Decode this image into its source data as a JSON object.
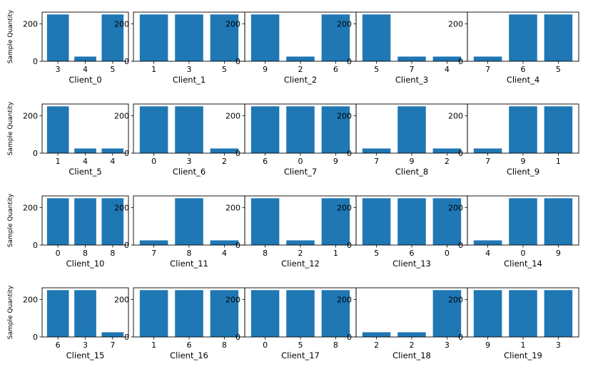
{
  "figure": {
    "bar_color": "#1f77b4",
    "axes_color": "#000000",
    "background": "#ffffff"
  },
  "chart_data": [
    {
      "type": "bar",
      "xlabel": "Client_0",
      "ylabel": "Sample Quantity",
      "categories": [
        "3",
        "4",
        "5"
      ],
      "values": [
        250,
        25,
        250
      ],
      "ylim": [
        0,
        262.5
      ],
      "yticks": [
        0,
        200
      ]
    },
    {
      "type": "bar",
      "xlabel": "Client_1",
      "ylabel": "",
      "categories": [
        "1",
        "3",
        "5"
      ],
      "values": [
        250,
        250,
        250
      ],
      "ylim": [
        0,
        262.5
      ],
      "yticks": [
        0,
        200
      ]
    },
    {
      "type": "bar",
      "xlabel": "Client_2",
      "ylabel": "",
      "categories": [
        "9",
        "2",
        "6"
      ],
      "values": [
        250,
        25,
        250
      ],
      "ylim": [
        0,
        262.5
      ],
      "yticks": [
        0,
        200
      ]
    },
    {
      "type": "bar",
      "xlabel": "Client_3",
      "ylabel": "",
      "categories": [
        "5",
        "7",
        "4"
      ],
      "values": [
        250,
        25,
        25
      ],
      "ylim": [
        0,
        262.5
      ],
      "yticks": [
        0,
        200
      ]
    },
    {
      "type": "bar",
      "xlabel": "Client_4",
      "ylabel": "",
      "categories": [
        "7",
        "6",
        "5"
      ],
      "values": [
        25,
        250,
        250
      ],
      "ylim": [
        0,
        262.5
      ],
      "yticks": [
        0,
        200
      ]
    },
    {
      "type": "bar",
      "xlabel": "Client_5",
      "ylabel": "Sample Quantity",
      "categories": [
        "1",
        "4",
        "4"
      ],
      "values": [
        250,
        25,
        25
      ],
      "ylim": [
        0,
        262.5
      ],
      "yticks": [
        0,
        200
      ]
    },
    {
      "type": "bar",
      "xlabel": "Client_6",
      "ylabel": "",
      "categories": [
        "0",
        "3",
        "2"
      ],
      "values": [
        250,
        250,
        25
      ],
      "ylim": [
        0,
        262.5
      ],
      "yticks": [
        0,
        200
      ]
    },
    {
      "type": "bar",
      "xlabel": "Client_7",
      "ylabel": "",
      "categories": [
        "6",
        "0",
        "9"
      ],
      "values": [
        250,
        250,
        250
      ],
      "ylim": [
        0,
        262.5
      ],
      "yticks": [
        0,
        200
      ]
    },
    {
      "type": "bar",
      "xlabel": "Client_8",
      "ylabel": "",
      "categories": [
        "7",
        "9",
        "2"
      ],
      "values": [
        25,
        250,
        25
      ],
      "ylim": [
        0,
        262.5
      ],
      "yticks": [
        0,
        200
      ]
    },
    {
      "type": "bar",
      "xlabel": "Client_9",
      "ylabel": "",
      "categories": [
        "7",
        "9",
        "1"
      ],
      "values": [
        25,
        250,
        250
      ],
      "ylim": [
        0,
        262.5
      ],
      "yticks": [
        0,
        200
      ]
    },
    {
      "type": "bar",
      "xlabel": "Client_10",
      "ylabel": "Sample Quantity",
      "categories": [
        "0",
        "8",
        "8"
      ],
      "values": [
        250,
        250,
        250
      ],
      "ylim": [
        0,
        262.5
      ],
      "yticks": [
        0,
        200
      ]
    },
    {
      "type": "bar",
      "xlabel": "Client_11",
      "ylabel": "",
      "categories": [
        "7",
        "8",
        "4"
      ],
      "values": [
        25,
        250,
        25
      ],
      "ylim": [
        0,
        262.5
      ],
      "yticks": [
        0,
        200
      ]
    },
    {
      "type": "bar",
      "xlabel": "Client_12",
      "ylabel": "",
      "categories": [
        "8",
        "2",
        "1"
      ],
      "values": [
        250,
        25,
        250
      ],
      "ylim": [
        0,
        262.5
      ],
      "yticks": [
        0,
        200
      ]
    },
    {
      "type": "bar",
      "xlabel": "Client_13",
      "ylabel": "",
      "categories": [
        "5",
        "6",
        "0"
      ],
      "values": [
        250,
        250,
        250
      ],
      "ylim": [
        0,
        262.5
      ],
      "yticks": [
        0,
        200
      ]
    },
    {
      "type": "bar",
      "xlabel": "Client_14",
      "ylabel": "",
      "categories": [
        "4",
        "0",
        "9"
      ],
      "values": [
        25,
        250,
        250
      ],
      "ylim": [
        0,
        262.5
      ],
      "yticks": [
        0,
        200
      ]
    },
    {
      "type": "bar",
      "xlabel": "Client_15",
      "ylabel": "Sample Quantity",
      "categories": [
        "6",
        "3",
        "7"
      ],
      "values": [
        250,
        250,
        25
      ],
      "ylim": [
        0,
        262.5
      ],
      "yticks": [
        0,
        200
      ]
    },
    {
      "type": "bar",
      "xlabel": "Client_16",
      "ylabel": "",
      "categories": [
        "1",
        "6",
        "8"
      ],
      "values": [
        250,
        250,
        250
      ],
      "ylim": [
        0,
        262.5
      ],
      "yticks": [
        0,
        200
      ]
    },
    {
      "type": "bar",
      "xlabel": "Client_17",
      "ylabel": "",
      "categories": [
        "0",
        "5",
        "8"
      ],
      "values": [
        250,
        250,
        250
      ],
      "ylim": [
        0,
        262.5
      ],
      "yticks": [
        0,
        200
      ]
    },
    {
      "type": "bar",
      "xlabel": "Client_18",
      "ylabel": "",
      "categories": [
        "2",
        "2",
        "3"
      ],
      "values": [
        25,
        25,
        250
      ],
      "ylim": [
        0,
        262.5
      ],
      "yticks": [
        0,
        200
      ]
    },
    {
      "type": "bar",
      "xlabel": "Client_19",
      "ylabel": "",
      "categories": [
        "9",
        "1",
        "3"
      ],
      "values": [
        250,
        250,
        250
      ],
      "ylim": [
        0,
        262.5
      ],
      "yticks": [
        0,
        200
      ]
    }
  ]
}
